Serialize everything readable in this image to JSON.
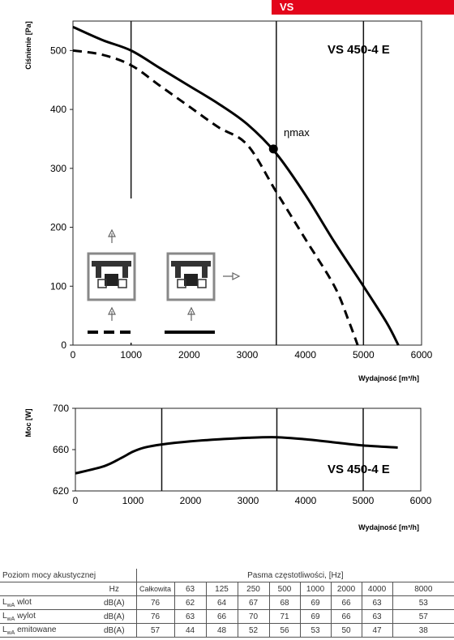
{
  "brand": {
    "label": "VS",
    "color": "#e3051b"
  },
  "pressure_chart": {
    "model": "VS 450-4 E",
    "eta_label": "ηmax",
    "chart_data": {
      "type": "line",
      "title": "",
      "xlabel": "Wydajność [m³/h]",
      "ylabel": "Ciśnienie [Pa]",
      "xlim": [
        0,
        6000
      ],
      "ylim": [
        0,
        550
      ],
      "xticks": [
        "0",
        "1000",
        "2000",
        "3000",
        "4000",
        "5000",
        "6000"
      ],
      "yticks": [
        "0",
        "100",
        "200",
        "300",
        "400",
        "500"
      ],
      "grid": "vertical lines at 1000, 3500 and 5000",
      "series": [
        {
          "style": "solid",
          "x": [
            0,
            500,
            1000,
            1500,
            2000,
            2500,
            3000,
            3500,
            4000,
            4500,
            5000,
            5400,
            5600
          ],
          "y": [
            540,
            518,
            500,
            470,
            440,
            410,
            375,
            325,
            255,
            175,
            100,
            38,
            0
          ]
        },
        {
          "style": "dashed",
          "x": [
            0,
            500,
            1000,
            1500,
            2000,
            2500,
            3000,
            3500,
            4000,
            4500,
            4750,
            4900
          ],
          "y": [
            500,
            493,
            475,
            440,
            405,
            370,
            340,
            260,
            180,
            100,
            40,
            0
          ]
        }
      ],
      "points": [
        {
          "label": "ηmax",
          "x": 3450,
          "y": 333
        }
      ]
    }
  },
  "power_chart": {
    "model": "VS 450-4 E",
    "chart_data": {
      "type": "line",
      "title": "",
      "xlabel": "Wydajność [m³/h]",
      "ylabel": "Moc [W]",
      "xlim": [
        0,
        6000
      ],
      "ylim": [
        620,
        700
      ],
      "xticks": [
        "0",
        "1000",
        "2000",
        "3000",
        "4000",
        "5000",
        "6000"
      ],
      "yticks": [
        "620",
        "660",
        "700"
      ],
      "grid": "vertical lines at 1500, 3500 and 5000",
      "series": [
        {
          "style": "solid",
          "x": [
            0,
            500,
            800,
            1000,
            1200,
            1500,
            2000,
            2500,
            3000,
            3500,
            4000,
            4500,
            5000,
            5600
          ],
          "y": [
            637,
            644,
            652,
            658,
            662,
            665,
            668,
            670,
            671.5,
            672,
            670,
            667,
            664,
            662
          ]
        }
      ]
    }
  },
  "sound_table": {
    "title": "Poziom mocy akustycznej",
    "bands_title": "Pasma częstotliwości, [Hz]",
    "unit_header": "Hz",
    "columns": [
      "Całkowita",
      "63",
      "125",
      "250",
      "500",
      "1000",
      "2000",
      "4000",
      "8000"
    ],
    "rows": [
      {
        "label": "wlot",
        "unit": "dB(A)",
        "values": [
          "76",
          "62",
          "64",
          "67",
          "68",
          "69",
          "66",
          "63",
          "53"
        ]
      },
      {
        "label": "wylot",
        "unit": "dB(A)",
        "values": [
          "76",
          "63",
          "66",
          "70",
          "71",
          "69",
          "66",
          "63",
          "57"
        ]
      },
      {
        "label": "emitowane",
        "unit": "dB(A)",
        "values": [
          "57",
          "44",
          "48",
          "52",
          "56",
          "53",
          "50",
          "47",
          "38"
        ]
      }
    ]
  }
}
